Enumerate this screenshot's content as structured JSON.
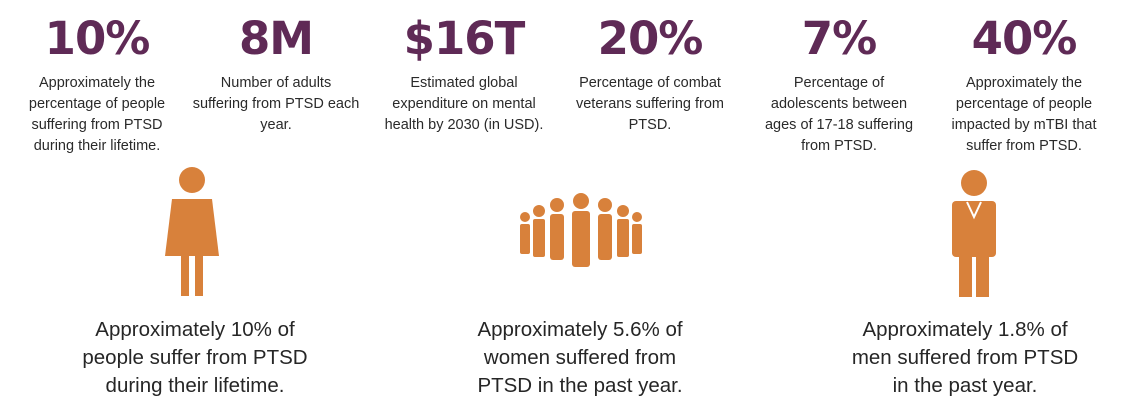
{
  "accent_color": "#5f2a56",
  "icon_color": "#d8813b",
  "stats": [
    {
      "value": "10%",
      "desc": [
        "Approximately the",
        "percentage of people",
        "suffering from PTSD",
        "during their lifetime."
      ]
    },
    {
      "value": "8M",
      "desc": [
        "Number of adults",
        "suffering from PTSD each",
        "year."
      ]
    },
    {
      "value": "$16T",
      "desc": [
        "Estimated global",
        "expenditure on mental",
        "health by 2030 (in USD)."
      ]
    },
    {
      "value": "20%",
      "desc": [
        "Percentage of combat",
        "veterans suffering from",
        "PTSD."
      ]
    },
    {
      "value": "7%",
      "desc": [
        "Percentage of",
        "adolescents between",
        "ages of 17-18 suffering",
        "from PTSD."
      ]
    },
    {
      "value": "40%",
      "desc": [
        "Approximately the",
        "percentage of people",
        "impacted by mTBI that",
        "suffer from PTSD."
      ]
    }
  ],
  "figures": {
    "woman_icon": "woman-icon",
    "crowd_icon": "crowd-icon",
    "man_icon": "man-icon"
  },
  "captions": [
    {
      "lines": [
        "Approximately 10% of",
        "people suffer from PTSD",
        "during their lifetime."
      ]
    },
    {
      "lines": [
        "Approximately 5.6% of",
        "women suffered from",
        "PTSD in the past year."
      ]
    },
    {
      "lines": [
        "Approximately 1.8% of",
        "men suffered from PTSD",
        "in the past year."
      ]
    }
  ]
}
